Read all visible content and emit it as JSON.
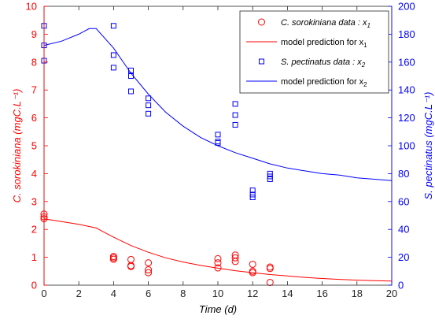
{
  "chart_data": {
    "type": "scatter",
    "x_axis": {
      "label": "Time (d)",
      "range": [
        0,
        20
      ],
      "ticks": [
        0,
        2,
        4,
        6,
        8,
        10,
        12,
        14,
        16,
        18,
        20
      ],
      "tick_labels": [
        "0",
        "2",
        "4",
        "6",
        "8",
        "10",
        "12",
        "14",
        "16",
        "18",
        "20"
      ]
    },
    "y_left": {
      "label": "C. sorokiniana (mgC.L⁻¹)",
      "range": [
        0,
        10
      ],
      "ticks": [
        0,
        1,
        2,
        3,
        4,
        5,
        6,
        7,
        8,
        9,
        10
      ],
      "tick_labels": [
        "0",
        "1",
        "2",
        "3",
        "4",
        "5",
        "6",
        "7",
        "8",
        "9",
        "10"
      ],
      "color": "#ff0000"
    },
    "y_right": {
      "label": "S. pectinatus (mgC.L⁻¹)",
      "range": [
        0,
        200
      ],
      "ticks": [
        0,
        20,
        40,
        60,
        80,
        100,
        120,
        140,
        160,
        180,
        200
      ],
      "tick_labels": [
        "0",
        "20",
        "40",
        "60",
        "80",
        "100",
        "120",
        "140",
        "160",
        "180",
        "200"
      ],
      "color": "#0000ff"
    },
    "grid": false,
    "legend": {
      "placement": "top-right",
      "entries": [
        {
          "series": "x1_data",
          "label": "C. sorokiniana data : x",
          "sub": "1",
          "italic": true
        },
        {
          "series": "x1_model",
          "label": "model prediction for x",
          "sub": "1",
          "italic": false
        },
        {
          "series": "x2_data",
          "label": "S. pectinatus data : x",
          "sub": "2",
          "italic": true
        },
        {
          "series": "x2_model",
          "label": "model prediction for x",
          "sub": "2",
          "italic": false
        }
      ]
    },
    "series": [
      {
        "id": "x1_data",
        "kind": "scatter",
        "marker": "circle",
        "axis": "left",
        "color": "#ff0000",
        "x": [
          0,
          0,
          0,
          4,
          4,
          4,
          5,
          5,
          5,
          6,
          6,
          6,
          10,
          10,
          10,
          11,
          11,
          11,
          12,
          12,
          12,
          13,
          13,
          13
        ],
        "y": [
          2.55,
          2.45,
          2.38,
          1.03,
          0.98,
          0.93,
          0.92,
          0.7,
          0.67,
          0.8,
          0.55,
          0.45,
          0.95,
          0.8,
          0.62,
          1.08,
          0.98,
          0.85,
          0.75,
          0.5,
          0.45,
          0.65,
          0.6,
          0.1
        ]
      },
      {
        "id": "x1_model",
        "kind": "line",
        "axis": "left",
        "color": "#ff0000",
        "x": [
          0,
          1,
          2,
          3,
          4,
          5,
          6,
          7,
          8,
          9,
          10,
          11,
          12,
          13,
          14,
          15,
          16,
          17,
          18,
          19,
          20
        ],
        "y": [
          2.38,
          2.28,
          2.18,
          2.05,
          1.72,
          1.42,
          1.18,
          0.98,
          0.83,
          0.71,
          0.61,
          0.52,
          0.45,
          0.38,
          0.33,
          0.28,
          0.24,
          0.21,
          0.18,
          0.16,
          0.15
        ]
      },
      {
        "id": "x2_data",
        "kind": "scatter",
        "marker": "square",
        "axis": "right",
        "color": "#0000ff",
        "x": [
          0,
          0,
          0,
          4,
          4,
          4,
          5,
          5,
          5,
          6,
          6,
          6,
          10,
          10,
          10,
          11,
          11,
          11,
          12,
          12,
          12,
          13,
          13,
          13
        ],
        "y": [
          186,
          172,
          161,
          186,
          165,
          156,
          154,
          150,
          139,
          134,
          129,
          123,
          108,
          103,
          102,
          130,
          122,
          115,
          68,
          65,
          63,
          80,
          78,
          76
        ]
      },
      {
        "id": "x2_model",
        "kind": "line",
        "axis": "right",
        "color": "#0000ff",
        "x": [
          0,
          1,
          2,
          2.6,
          3,
          4,
          5,
          6,
          7,
          8,
          9,
          10,
          11,
          12,
          13,
          14,
          15,
          16,
          17,
          18,
          19,
          20
        ],
        "y": [
          172,
          175,
          180,
          184,
          184,
          170,
          152,
          137,
          124,
          114,
          106,
          100,
          95,
          91,
          87,
          84,
          82,
          80,
          79,
          77,
          76,
          75
        ]
      }
    ]
  }
}
